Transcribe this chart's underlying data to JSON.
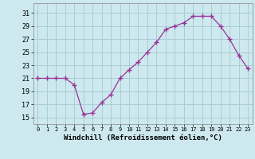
{
  "x": [
    0,
    1,
    2,
    3,
    4,
    5,
    6,
    7,
    8,
    9,
    10,
    11,
    12,
    13,
    14,
    15,
    16,
    17,
    18,
    19,
    20,
    21,
    22,
    23
  ],
  "y": [
    21,
    21,
    21,
    21,
    20,
    15.5,
    15.7,
    17.3,
    18.5,
    21,
    22.3,
    23.5,
    25,
    26.5,
    28.5,
    29,
    29.5,
    30.5,
    30.5,
    30.5,
    29.0,
    27.0,
    24.5,
    22.5
  ],
  "line_color": "#993399",
  "marker": "+",
  "marker_size": 4,
  "bg_color": "#cde8ee",
  "grid_color": "#aacdd6",
  "xlabel": "Windchill (Refroidissement éolien,°C)",
  "xlabel_fontsize": 6.5,
  "yticks": [
    15,
    17,
    19,
    21,
    23,
    25,
    27,
    29,
    31
  ],
  "xticks": [
    0,
    1,
    2,
    3,
    4,
    5,
    6,
    7,
    8,
    9,
    10,
    11,
    12,
    13,
    14,
    15,
    16,
    17,
    18,
    19,
    20,
    21,
    22,
    23
  ],
  "ylim": [
    14.0,
    32.5
  ],
  "xlim": [
    -0.5,
    23.5
  ]
}
